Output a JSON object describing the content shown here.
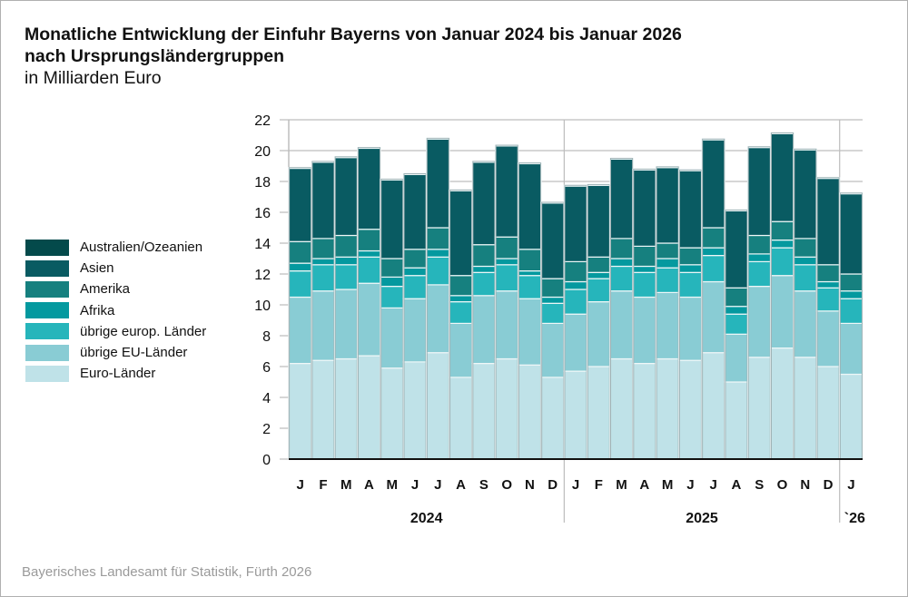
{
  "chart_data": {
    "type": "bar",
    "stacked": true,
    "title": "Monatliche Entwicklung der Einfuhr Bayerns von Januar 2024 bis Januar 2026",
    "title_line2": "nach Ursprungsländergruppen",
    "subtitle": "in Milliarden Euro",
    "xlabel": "",
    "ylabel": "",
    "ylim": [
      0,
      22
    ],
    "yticks": [
      0,
      2,
      4,
      6,
      8,
      10,
      12,
      14,
      16,
      18,
      20,
      22
    ],
    "grid": true,
    "legend_position": "left",
    "categories": [
      "J",
      "F",
      "M",
      "A",
      "M",
      "J",
      "J",
      "A",
      "S",
      "O",
      "N",
      "D",
      "J",
      "F",
      "M",
      "A",
      "M",
      "J",
      "J",
      "A",
      "S",
      "O",
      "N",
      "D",
      "J"
    ],
    "year_groups": [
      {
        "label": "2024",
        "count": 12
      },
      {
        "label": "2025",
        "count": 12
      },
      {
        "label": "`26",
        "count": 1
      }
    ],
    "series": [
      {
        "name": "Euro-Länder",
        "color": "#bfe2e8",
        "values": [
          6.2,
          6.4,
          6.5,
          6.7,
          5.9,
          6.3,
          6.9,
          5.3,
          6.2,
          6.5,
          6.1,
          5.3,
          5.7,
          6.0,
          6.5,
          6.2,
          6.5,
          6.4,
          6.9,
          5.0,
          6.6,
          7.2,
          6.6,
          6.0,
          5.5
        ]
      },
      {
        "name": "übrige EU-Länder",
        "color": "#89ccd4",
        "values": [
          4.3,
          4.5,
          4.5,
          4.7,
          3.9,
          4.1,
          4.4,
          3.5,
          4.4,
          4.4,
          4.3,
          3.5,
          3.7,
          4.2,
          4.4,
          4.3,
          4.3,
          4.1,
          4.6,
          3.1,
          4.6,
          4.7,
          4.3,
          3.6,
          3.3
        ]
      },
      {
        "name": "übrige europ. Länder",
        "color": "#26b5bb",
        "values": [
          1.7,
          1.7,
          1.6,
          1.7,
          1.4,
          1.5,
          1.8,
          1.4,
          1.5,
          1.7,
          1.5,
          1.3,
          1.6,
          1.5,
          1.6,
          1.6,
          1.6,
          1.6,
          1.7,
          1.3,
          1.6,
          1.8,
          1.7,
          1.5,
          1.6
        ]
      },
      {
        "name": "Afrika",
        "color": "#04999f",
        "values": [
          0.5,
          0.4,
          0.5,
          0.4,
          0.6,
          0.5,
          0.5,
          0.4,
          0.4,
          0.4,
          0.3,
          0.4,
          0.5,
          0.4,
          0.5,
          0.4,
          0.6,
          0.5,
          0.5,
          0.5,
          0.5,
          0.5,
          0.5,
          0.4,
          0.5
        ]
      },
      {
        "name": "Amerika",
        "color": "#16807f",
        "values": [
          1.4,
          1.3,
          1.4,
          1.4,
          1.2,
          1.2,
          1.4,
          1.3,
          1.4,
          1.4,
          1.4,
          1.2,
          1.3,
          1.0,
          1.3,
          1.3,
          1.0,
          1.1,
          1.3,
          1.2,
          1.2,
          1.2,
          1.2,
          1.1,
          1.1
        ]
      },
      {
        "name": "Asien",
        "color": "#095b62",
        "values": [
          4.75,
          4.95,
          5.05,
          5.25,
          5.1,
          4.85,
          5.75,
          5.5,
          5.35,
          5.9,
          5.55,
          4.9,
          4.9,
          4.65,
          5.15,
          4.95,
          4.9,
          5.0,
          5.7,
          5.0,
          5.7,
          5.7,
          5.75,
          5.6,
          5.2
        ]
      },
      {
        "name": "Australien/Ozeanien",
        "color": "#044a4b",
        "values": [
          0.05,
          0.05,
          0.05,
          0.05,
          0.05,
          0.05,
          0.05,
          0.05,
          0.05,
          0.05,
          0.05,
          0.05,
          0.05,
          0.05,
          0.05,
          0.05,
          0.05,
          0.05,
          0.05,
          0.05,
          0.05,
          0.05,
          0.05,
          0.05,
          0.05
        ]
      }
    ],
    "legend_order": [
      "Australien/Ozeanien",
      "Asien",
      "Amerika",
      "Afrika",
      "übrige europ. Länder",
      "übrige EU-Länder",
      "Euro-Länder"
    ]
  },
  "footer": "Bayerisches Landesamt für Statistik, Fürth 2026"
}
